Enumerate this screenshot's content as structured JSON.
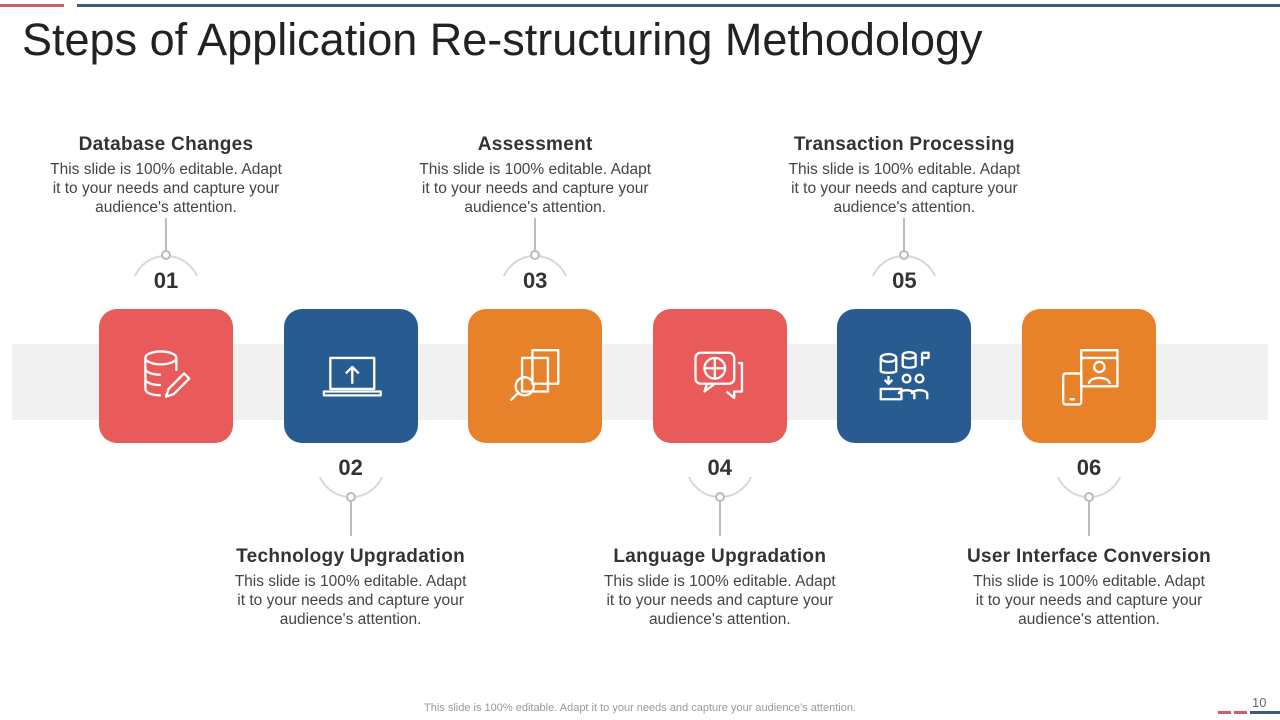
{
  "title": "Steps of Application Re-structuring Methodology",
  "steps": [
    {
      "num": "01",
      "title": "Database Changes",
      "desc": "This slide is 100% editable. Adapt it to your needs and capture your audience's attention.",
      "color": "#e85b5a",
      "icon": "database-edit-icon"
    },
    {
      "num": "02",
      "title": "Technology Upgradation",
      "desc": "This slide is 100% editable. Adapt it to your needs and capture your audience's attention.",
      "color": "#285b8f",
      "icon": "laptop-upload-icon"
    },
    {
      "num": "03",
      "title": "Assessment",
      "desc": "This slide is 100% editable. Adapt it to your needs and capture your audience's attention.",
      "color": "#e8822a",
      "icon": "document-search-icon"
    },
    {
      "num": "04",
      "title": "Language Upgradation",
      "desc": "This slide is 100% editable. Adapt it to your needs and capture your audience's attention.",
      "color": "#e85b5a",
      "icon": "globe-chat-icon"
    },
    {
      "num": "05",
      "title": "Transaction Processing",
      "desc": "This slide is 100% editable. Adapt it to your needs and capture your audience's attention.",
      "color": "#285b8f",
      "icon": "database-users-icon"
    },
    {
      "num": "06",
      "title": "User Interface Conversion",
      "desc": "This slide is 100% editable. Adapt it to your needs and capture your audience's attention.",
      "color": "#e8822a",
      "icon": "device-user-icon"
    }
  ],
  "footer": "This slide is 100% editable. Adapt it to your needs and capture your audience's attention.",
  "page_number": "10"
}
